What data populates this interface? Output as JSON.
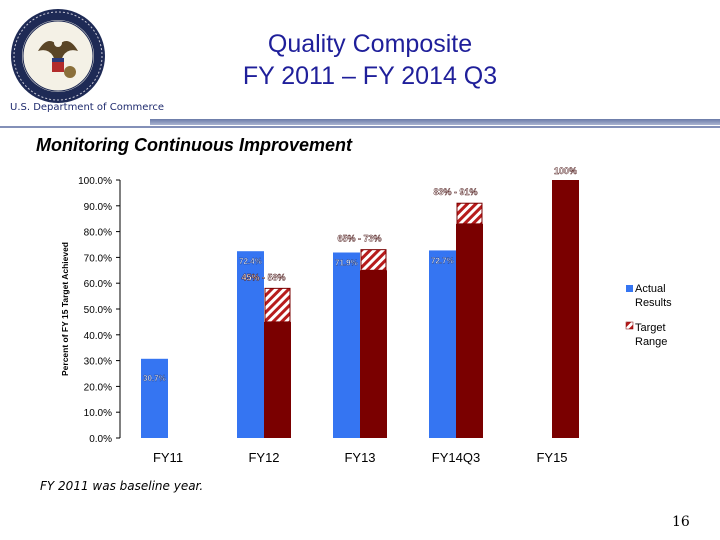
{
  "slide": {
    "title_line1": "Quality Composite",
    "title_line2": "FY 2011 – FY 2014 Q3",
    "department": "U.S. Department of Commerce",
    "subtitle": "Monitoring Continuous Improvement",
    "footnote": "FY 2011 was baseline year.",
    "page_number": "16"
  },
  "colors": {
    "title": "#1f1f9a",
    "actual": "#3575f2",
    "target": "#7a0000"
  },
  "chart_data": {
    "type": "bar",
    "ylabel": "Percent of FY 15 Target Achieved",
    "ylim": [
      0,
      100
    ],
    "yticks": [
      "0.0%",
      "10.0%",
      "20.0%",
      "30.0%",
      "40.0%",
      "50.0%",
      "60.0%",
      "70.0%",
      "80.0%",
      "90.0%",
      "100.0%"
    ],
    "categories": [
      "FY11",
      "FY12",
      "FY13",
      "FY14Q3",
      "FY15"
    ],
    "series": [
      {
        "name": "Actual Results",
        "values": [
          30.7,
          72.4,
          71.9,
          72.7,
          null
        ],
        "labels": [
          "30.7%",
          "72.4%",
          "71.9%",
          "72.7%",
          ""
        ]
      },
      {
        "name": "Target Range",
        "low": [
          null,
          45,
          65,
          83,
          100
        ],
        "high": [
          null,
          58,
          73,
          91,
          100
        ],
        "labels": [
          "",
          "45% - 58%",
          "65% - 73%",
          "83% - 91%",
          "100%"
        ]
      }
    ],
    "legend": "right",
    "grid": false
  }
}
